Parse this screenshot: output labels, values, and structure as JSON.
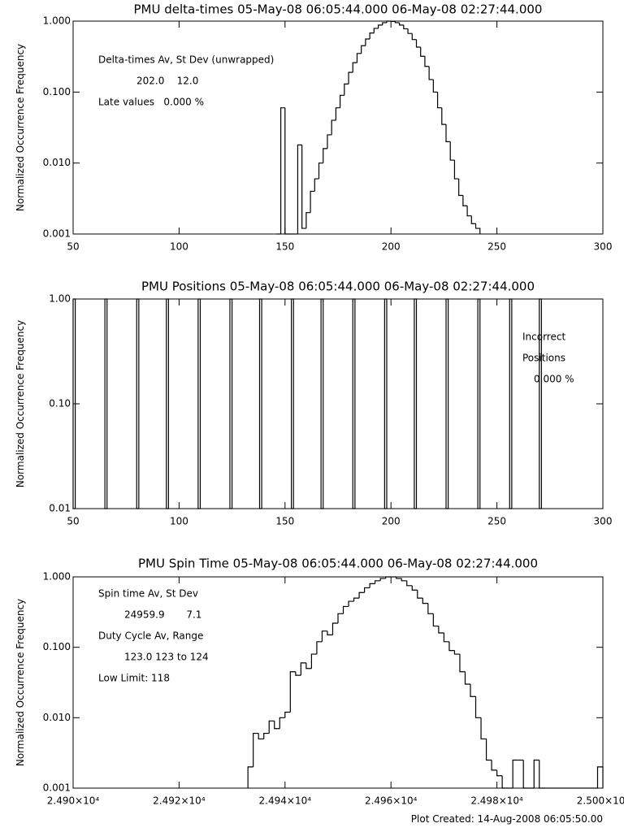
{
  "chart_data": [
    {
      "type": "histogram",
      "title": "PMU delta-times 05-May-08 06:05:44.000 06-May-08 02:27:44.000",
      "y_label": "Normalized Occurrence Frequency",
      "bins": [
        146,
        148,
        150,
        152,
        154,
        156,
        158,
        160,
        162,
        164,
        166,
        168,
        170,
        172,
        174,
        176,
        178,
        180,
        182,
        184,
        186,
        188,
        190,
        192,
        194,
        196,
        198,
        200,
        202,
        204,
        206,
        208,
        210,
        212,
        214,
        216,
        218,
        220,
        222,
        224,
        226,
        228,
        230,
        232,
        234,
        236,
        238,
        240,
        242
      ],
      "values": [
        0,
        0.06,
        0,
        0,
        0,
        0.018,
        0.0012,
        0.002,
        0.004,
        0.006,
        0.01,
        0.016,
        0.025,
        0.04,
        0.06,
        0.09,
        0.13,
        0.19,
        0.26,
        0.35,
        0.45,
        0.56,
        0.68,
        0.79,
        0.88,
        0.95,
        1.0,
        0.99,
        0.95,
        0.88,
        0.78,
        0.67,
        0.55,
        0.43,
        0.32,
        0.23,
        0.15,
        0.1,
        0.06,
        0.035,
        0.02,
        0.011,
        0.006,
        0.0035,
        0.0025,
        0.0018,
        0.0014,
        0.0012
      ],
      "color": "#000000",
      "xlim": [
        50,
        300
      ],
      "xticks": [
        50,
        100,
        150,
        200,
        250,
        300
      ],
      "ylim": [
        0.001,
        1
      ],
      "log_y": true,
      "yticks": [
        0.001,
        {
          "value": 0.01,
          "label": "0.010"
        },
        {
          "value": 0.1,
          "label": "0.100"
        },
        {
          "value": 1,
          "label": "1.000"
        }
      ],
      "annotations": [
        "Delta-times Av, St Dev (unwrapped)",
        "202.0    12.0",
        "Late values   0.000 %"
      ]
    },
    {
      "type": "bar",
      "title": "PMU Positions 05-May-08 06:05:44.000 06-May-08 02:27:44.000",
      "y_label": "Normalized Occurrence Frequency",
      "x": [
        50,
        65,
        80,
        94,
        109,
        124,
        138,
        153,
        167,
        182,
        197,
        211,
        226,
        241,
        256,
        270
      ],
      "values": [
        1,
        1,
        1,
        1,
        1,
        1,
        1,
        1,
        1,
        1,
        1,
        1,
        1,
        1,
        1,
        1
      ],
      "color": "#000000",
      "xlim": [
        50,
        300
      ],
      "xticks": [
        50,
        100,
        150,
        200,
        250,
        300
      ],
      "ylim": [
        0.01,
        1
      ],
      "log_y": true,
      "yticks": [
        0.01,
        {
          "value": 0.1,
          "label": "0.10"
        },
        {
          "value": 1,
          "label": "1.00"
        }
      ],
      "annotations": [
        "Incorrect",
        "Positions",
        "0.000 %"
      ]
    },
    {
      "type": "histogram",
      "title": "PMU Spin Time 05-May-08 06:05:44.000 06-May-08 02:27:44.000",
      "y_label": "Normalized Occurrence Frequency",
      "bins": [
        24933,
        24934,
        24935,
        24936,
        24937,
        24938,
        24939,
        24940,
        24941,
        24942,
        24943,
        24944,
        24945,
        24946,
        24947,
        24948,
        24949,
        24950,
        24951,
        24952,
        24953,
        24954,
        24955,
        24956,
        24957,
        24958,
        24959,
        24960,
        24961,
        24962,
        24963,
        24964,
        24965,
        24966,
        24967,
        24968,
        24969,
        24970,
        24971,
        24972,
        24973,
        24974,
        24975,
        24976,
        24977,
        24978,
        24979,
        24980,
        24981,
        24982,
        24983,
        24984,
        24985,
        24986,
        24987,
        24988,
        24989,
        24990,
        24991,
        24992,
        24993,
        24994,
        24995,
        24996,
        24997,
        24998,
        24999,
        25000
      ],
      "values": [
        0.002,
        0.006,
        0.005,
        0.006,
        0.009,
        0.007,
        0.01,
        0.012,
        0.045,
        0.04,
        0.06,
        0.05,
        0.08,
        0.12,
        0.17,
        0.15,
        0.22,
        0.3,
        0.38,
        0.45,
        0.5,
        0.6,
        0.7,
        0.8,
        0.88,
        0.95,
        1.0,
        1.0,
        0.95,
        0.88,
        0.75,
        0.65,
        0.5,
        0.42,
        0.3,
        0.2,
        0.16,
        0.12,
        0.09,
        0.08,
        0.045,
        0.03,
        0.02,
        0.01,
        0.005,
        0.0025,
        0.0018,
        0.0015,
        0,
        0,
        0.0025,
        0.0025,
        0,
        0,
        0.0025,
        0,
        0,
        0,
        0,
        0,
        0,
        0,
        0,
        0,
        0,
        0,
        0.002
      ],
      "color": "#000000",
      "xlim": [
        24900,
        25000
      ],
      "xticks": [
        {
          "value": 24900,
          "label": "2.490×10⁴"
        },
        {
          "value": 24920,
          "label": "2.492×10⁴"
        },
        {
          "value": 24940,
          "label": "2.494×10⁴"
        },
        {
          "value": 24960,
          "label": "2.496×10⁴"
        },
        {
          "value": 24980,
          "label": "2.498×10⁴"
        },
        {
          "value": 25000,
          "label": "2.500×10⁴"
        }
      ],
      "ylim": [
        0.001,
        1
      ],
      "log_y": true,
      "yticks": [
        0.001,
        {
          "value": 0.01,
          "label": "0.010"
        },
        {
          "value": 0.1,
          "label": "0.100"
        },
        {
          "value": 1,
          "label": "1.000"
        }
      ],
      "annotations": [
        "Spin time Av, St Dev",
        "24959.9       7.1",
        "Duty Cycle Av, Range",
        "123.0 123 to 124",
        "Low Limit: 118"
      ]
    }
  ],
  "footer": "Plot Created: 14-Aug-2008 06:05:50.00"
}
